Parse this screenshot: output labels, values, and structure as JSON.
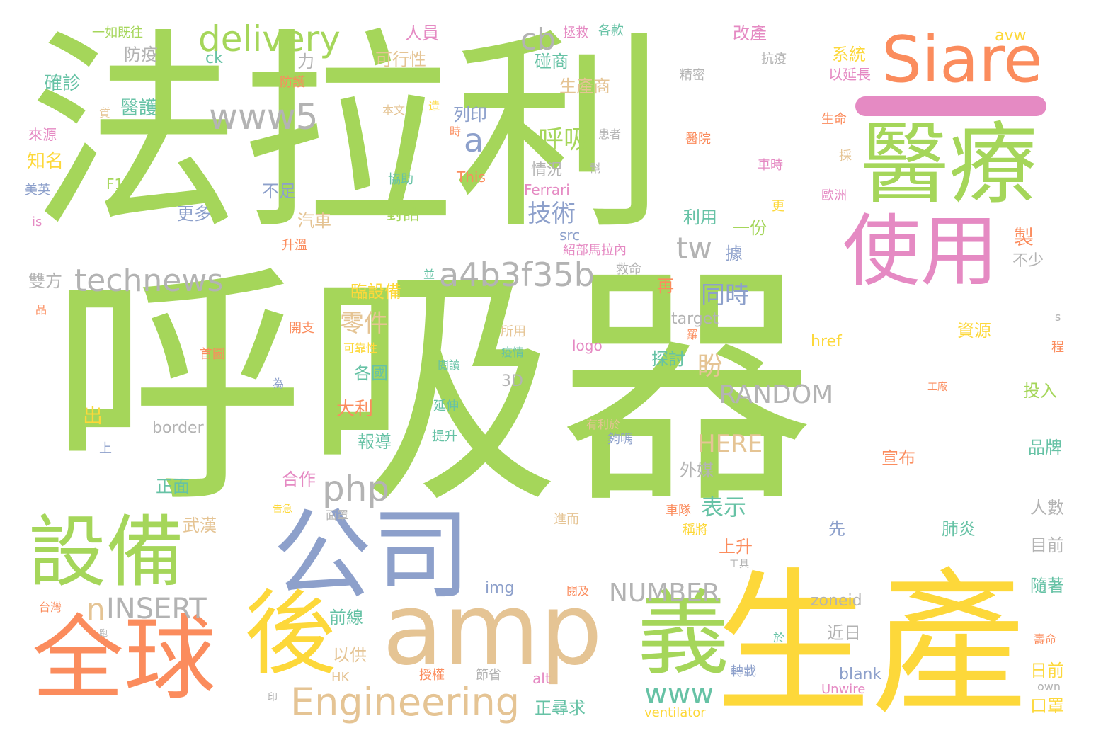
{
  "palette": {
    "green": "#a5d65a",
    "yellow": "#fdd83a",
    "orange": "#fb8c5d",
    "blue": "#8da0cb",
    "pink": "#e58ac3",
    "tan": "#e5c494",
    "gray": "#b3b3b3",
    "teal": "#66c2a5",
    "purple_bar": "#e58ac3"
  },
  "words": [
    {
      "text": "法拉利"
    },
    {
      "text": "呼吸器"
    },
    {
      "text": "生產"
    },
    {
      "text": "amp"
    },
    {
      "text": "公司"
    },
    {
      "text": "全球"
    },
    {
      "text": "後"
    },
    {
      "text": "義"
    },
    {
      "text": "Siare"
    },
    {
      "text": "醫療"
    },
    {
      "text": "使用"
    },
    {
      "text": "設備"
    },
    {
      "text": "Engineering"
    },
    {
      "text": "delivery"
    },
    {
      "text": "www5"
    },
    {
      "text": "technews"
    },
    {
      "text": "a4b3f35b"
    },
    {
      "text": "php"
    },
    {
      "text": "INSERT"
    },
    {
      "text": "NUMBER"
    },
    {
      "text": "RANDOM"
    },
    {
      "text": "www"
    },
    {
      "text": "cb"
    },
    {
      "text": "tw"
    },
    {
      "text": "a"
    },
    {
      "text": "n"
    },
    {
      "text": "HERE"
    },
    {
      "text": "呼吸"
    },
    {
      "text": "技術"
    },
    {
      "text": "盼"
    },
    {
      "text": "同時"
    },
    {
      "text": "零件"
    },
    {
      "text": "表示"
    },
    {
      "text": "一如既往"
    },
    {
      "text": "ck"
    },
    {
      "text": "防疫"
    },
    {
      "text": "確診"
    },
    {
      "text": "醫護"
    },
    {
      "text": "知名"
    },
    {
      "text": "美英"
    },
    {
      "text": "is"
    },
    {
      "text": "F1"
    },
    {
      "text": "人員"
    },
    {
      "text": "可行性"
    },
    {
      "text": "列印"
    },
    {
      "text": "情況"
    },
    {
      "text": "不足"
    },
    {
      "text": "更多"
    },
    {
      "text": "汽車"
    },
    {
      "text": "雙方"
    },
    {
      "text": "對話"
    },
    {
      "text": "利用"
    },
    {
      "text": "一份"
    },
    {
      "text": "碰商"
    },
    {
      "text": "生產商"
    },
    {
      "text": "系統"
    },
    {
      "text": "改產"
    },
    {
      "text": "avw"
    },
    {
      "text": "以延長"
    },
    {
      "text": "抗疫"
    },
    {
      "text": "精密"
    },
    {
      "text": "拯救"
    },
    {
      "text": "各款"
    },
    {
      "text": "來源"
    },
    {
      "text": "協助"
    },
    {
      "text": "This"
    },
    {
      "text": "Ferrari"
    },
    {
      "text": "src"
    },
    {
      "text": "紹部馬拉內"
    },
    {
      "text": "救命"
    },
    {
      "text": "臨設備"
    },
    {
      "text": "探討"
    },
    {
      "text": "各國"
    },
    {
      "text": "大利"
    },
    {
      "text": "報導"
    },
    {
      "text": "合作"
    },
    {
      "text": "正面"
    },
    {
      "text": "武漢"
    },
    {
      "text": "上升"
    },
    {
      "text": "前線"
    },
    {
      "text": "以供"
    },
    {
      "text": "HK"
    },
    {
      "text": "border"
    },
    {
      "text": "3D"
    },
    {
      "text": "target"
    },
    {
      "text": "logo"
    },
    {
      "text": "href"
    },
    {
      "text": "資源"
    },
    {
      "text": "投入"
    },
    {
      "text": "品牌"
    },
    {
      "text": "宣布"
    },
    {
      "text": "外媒"
    },
    {
      "text": "肺炎"
    },
    {
      "text": "先"
    },
    {
      "text": "人數"
    },
    {
      "text": "目前"
    },
    {
      "text": "隨著"
    },
    {
      "text": "img"
    },
    {
      "text": "zoneid"
    },
    {
      "text": "近日"
    },
    {
      "text": "日前"
    },
    {
      "text": "blank"
    },
    {
      "text": "Unwire"
    },
    {
      "text": "alt"
    },
    {
      "text": "正尋求"
    },
    {
      "text": "口罩"
    },
    {
      "text": "ventilator"
    },
    {
      "text": "own"
    },
    {
      "text": "不少"
    },
    {
      "text": "生命"
    },
    {
      "text": "醫院"
    },
    {
      "text": "車時"
    },
    {
      "text": "歐洲"
    },
    {
      "text": "再"
    },
    {
      "text": "製"
    },
    {
      "text": "據"
    },
    {
      "text": "出"
    },
    {
      "text": "上"
    },
    {
      "text": "為"
    },
    {
      "text": "台灣"
    },
    {
      "text": "印"
    },
    {
      "text": "跑"
    },
    {
      "text": "於"
    },
    {
      "text": "壽命"
    },
    {
      "text": "工具"
    },
    {
      "text": "閱及"
    },
    {
      "text": "轉載"
    },
    {
      "text": "節省"
    },
    {
      "text": "授權"
    },
    {
      "text": "告急"
    },
    {
      "text": "面罩"
    },
    {
      "text": "進而"
    },
    {
      "text": "車隊"
    },
    {
      "text": "稱將"
    },
    {
      "text": "夠嗎"
    },
    {
      "text": "有利於"
    },
    {
      "text": "延伸"
    },
    {
      "text": "提升"
    },
    {
      "text": "可靠性"
    },
    {
      "text": "開支"
    },
    {
      "text": "首圖"
    },
    {
      "text": "所用"
    },
    {
      "text": "疫情"
    },
    {
      "text": "閱讀"
    },
    {
      "text": "並"
    },
    {
      "text": "升溫"
    },
    {
      "text": "品"
    },
    {
      "text": "本文"
    },
    {
      "text": "質"
    },
    {
      "text": "時"
    },
    {
      "text": "造"
    },
    {
      "text": "防護"
    },
    {
      "text": "患者"
    },
    {
      "text": "幫"
    },
    {
      "text": "採"
    },
    {
      "text": "力"
    },
    {
      "text": "更"
    },
    {
      "text": "工廠"
    },
    {
      "text": "程"
    },
    {
      "text": "s"
    },
    {
      "text": "羅"
    }
  ]
}
